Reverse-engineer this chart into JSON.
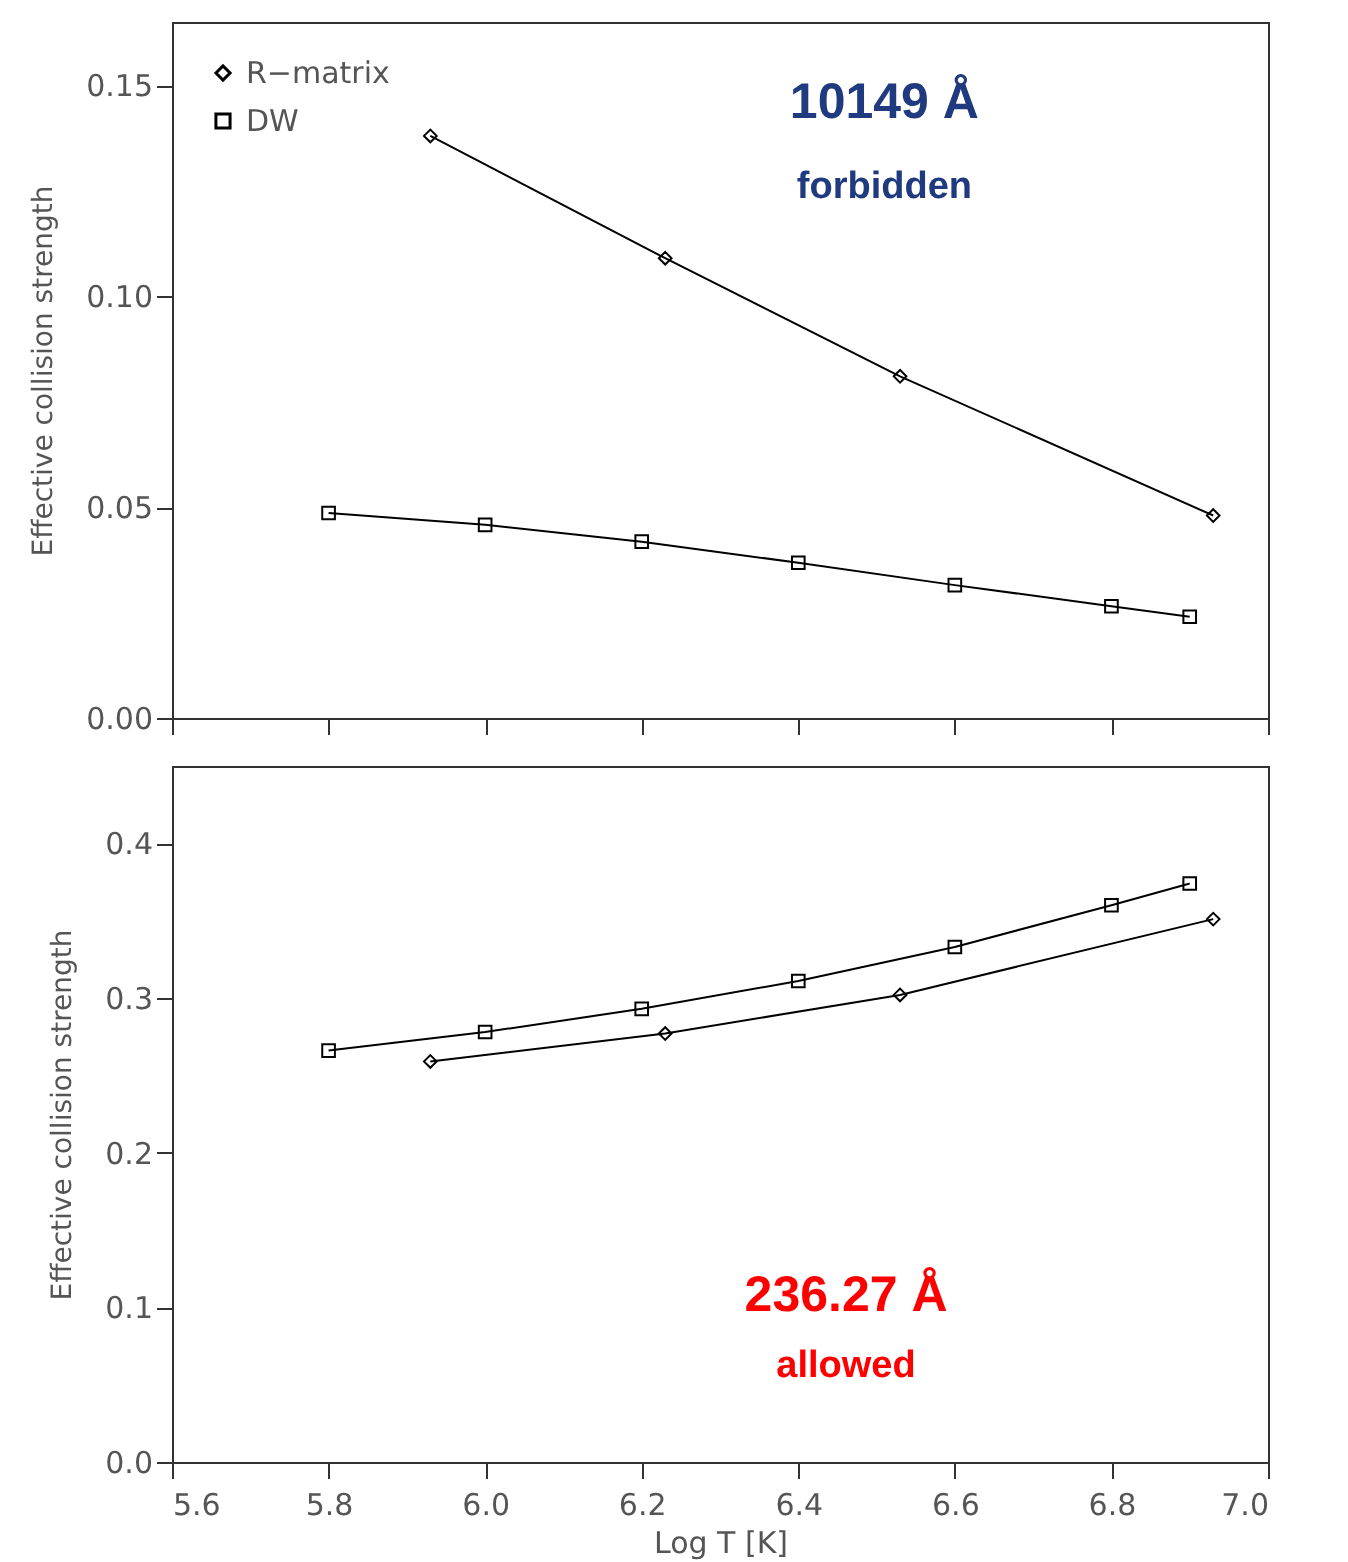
{
  "chart_data": [
    {
      "type": "line",
      "ylabel": "Effective collision strength",
      "xlim": [
        5.6,
        7.0
      ],
      "xticks": [
        5.6,
        5.8,
        6.0,
        6.2,
        6.4,
        6.6,
        6.8,
        7.0
      ],
      "ylim": [
        0,
        0.165
      ],
      "yticks": [
        {
          "value": 0,
          "label": "0.00"
        },
        {
          "value": 0.05,
          "label": "0.05"
        },
        {
          "value": 0.1,
          "label": "0.10"
        },
        {
          "value": 0.15,
          "label": "0.15"
        }
      ],
      "tick_labels": "y",
      "legend": "top left",
      "annotations": [
        "10149 Å",
        "forbidden"
      ],
      "series": [
        {
          "name": "R−matrix",
          "color": "#000000",
          "marker": "diamond",
          "x": [
            5.93,
            6.23,
            6.53,
            6.93
          ],
          "values": [
            0.138,
            0.109,
            0.081,
            0.048
          ]
        },
        {
          "name": "DW",
          "color": "#000000",
          "marker": "square",
          "x": [
            5.8,
            6.0,
            6.2,
            6.4,
            6.6,
            6.8,
            6.9
          ],
          "values": [
            0.0486,
            0.0458,
            0.0418,
            0.0368,
            0.0315,
            0.0265,
            0.024
          ]
        }
      ]
    },
    {
      "type": "line",
      "xlabel": "Log T [K]",
      "ylabel": "Effective collision strength",
      "xlim": [
        5.6,
        7.0
      ],
      "xticks": [
        {
          "value": 5.6,
          "label": "5.6"
        },
        {
          "value": 5.8,
          "label": "5.8"
        },
        {
          "value": 6.0,
          "label": "6.0"
        },
        {
          "value": 6.2,
          "label": "6.2"
        },
        {
          "value": 6.4,
          "label": "6.4"
        },
        {
          "value": 6.6,
          "label": "6.6"
        },
        {
          "value": 6.8,
          "label": "6.8"
        },
        {
          "value": 7.0,
          "label": "7.0"
        }
      ],
      "ylim": [
        0,
        0.45
      ],
      "yticks": [
        {
          "value": 0,
          "label": "0.0"
        },
        0.1,
        0.2,
        0.3,
        0.4
      ],
      "legend": "top left",
      "annotations": [
        "236.27 Å",
        "allowed"
      ],
      "series": [
        {
          "name": "R−matrix",
          "color": "#000000",
          "marker": "diamond",
          "x": [
            5.93,
            6.23,
            6.53,
            6.93
          ],
          "values": [
            0.259,
            0.277,
            0.302,
            0.351
          ]
        },
        {
          "name": "DW",
          "color": "#000000",
          "marker": "square",
          "x": [
            5.8,
            6.0,
            6.2,
            6.4,
            6.6,
            6.8,
            6.9
          ],
          "values": [
            0.266,
            0.278,
            0.293,
            0.311,
            0.333,
            0.36,
            0.374
          ]
        }
      ]
    }
  ]
}
